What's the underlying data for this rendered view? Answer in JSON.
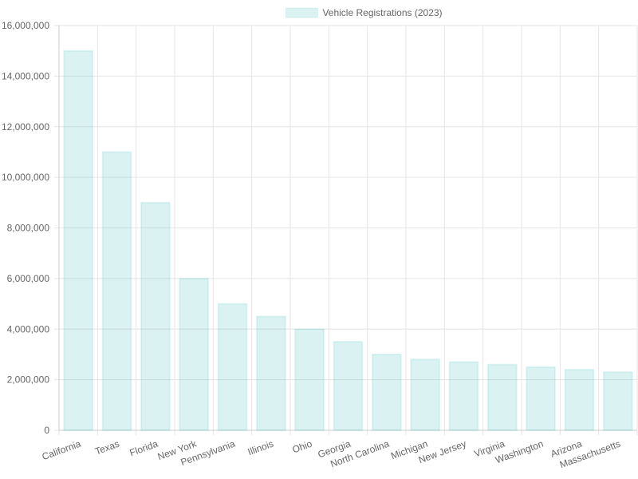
{
  "chart_data": {
    "type": "bar",
    "categories": [
      "California",
      "Texas",
      "Florida",
      "New York",
      "Pennsylvania",
      "Illinois",
      "Ohio",
      "Georgia",
      "North Carolina",
      "Michigan",
      "New Jersey",
      "Virginia",
      "Washington",
      "Arizona",
      "Massachusetts"
    ],
    "series": [
      {
        "name": "Vehicle Registrations (2023)",
        "color": "rgba(75, 192, 192, 0.2)",
        "values": [
          15000000,
          11000000,
          9000000,
          6000000,
          5000000,
          4500000,
          4000000,
          3500000,
          3000000,
          2800000,
          2700000,
          2600000,
          2500000,
          2400000,
          2300000
        ]
      }
    ],
    "ylim": [
      0,
      16000000
    ],
    "yticks": [
      0,
      {
        "value": 2000000,
        "label": "2,000,000"
      },
      {
        "value": 4000000,
        "label": "4,000,000"
      },
      {
        "value": 6000000,
        "label": "6,000,000"
      },
      {
        "value": 8000000,
        "label": "8,000,000"
      },
      {
        "value": 10000000,
        "label": "10,000,000"
      },
      {
        "value": 12000000,
        "label": "12,000,000"
      },
      {
        "value": 14000000,
        "label": "14,000,000"
      },
      {
        "value": 16000000,
        "label": "16,000,000"
      }
    ],
    "grid": true,
    "legend": "top"
  }
}
